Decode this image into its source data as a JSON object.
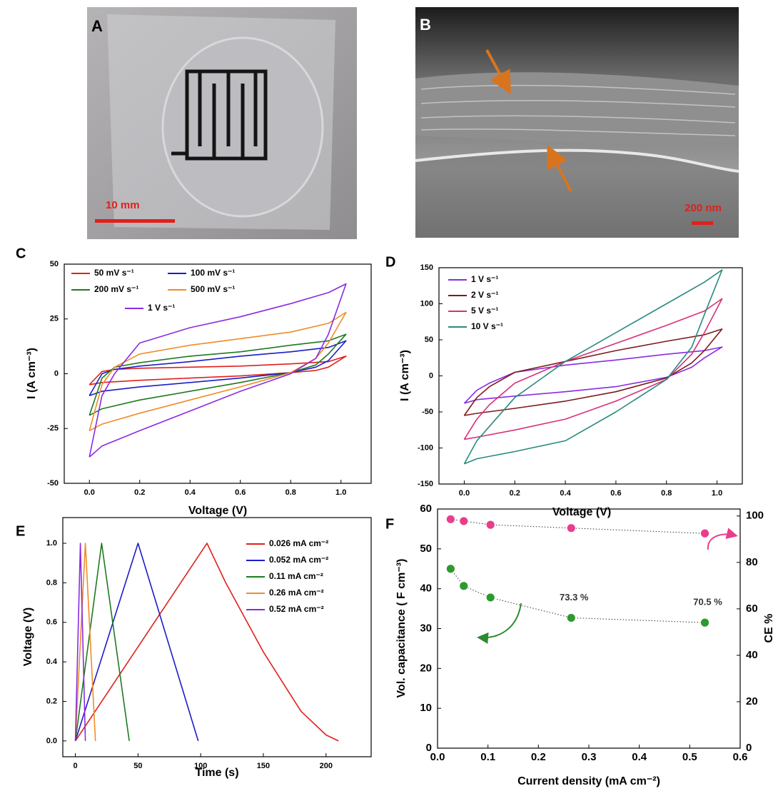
{
  "photos": [
    {
      "label": "A",
      "scale_bar": "10 mm"
    },
    {
      "label": "B",
      "scale_bar": "200 nm"
    }
  ],
  "chart_data": [
    {
      "type": "line",
      "label": "C",
      "x_label": "Voltage (V)",
      "y_label": "I (A cm⁻³)",
      "x": [
        0,
        0.05,
        0.1,
        0.2,
        0.4,
        0.6,
        0.8,
        0.95,
        1.02,
        0.95,
        0.9,
        0.8,
        0.6,
        0.4,
        0.2,
        0.05,
        0
      ],
      "xlim": [
        -0.1,
        1.12
      ],
      "xticks": [
        {
          "value": 0,
          "label": "0.0"
        },
        0.2,
        0.4,
        0.6,
        0.8,
        {
          "value": 1,
          "label": "1.0"
        }
      ],
      "ylim": [
        -50,
        50
      ],
      "yticks": [
        -50,
        -25,
        0,
        25,
        50
      ],
      "series": [
        {
          "name": "50 mV s⁻¹",
          "color": "#e0201c",
          "values": [
            -5,
            1,
            2,
            2.5,
            3,
            3.5,
            4.5,
            5.5,
            8,
            3,
            1.5,
            0.5,
            -1,
            -2,
            -3,
            -4,
            -5
          ]
        },
        {
          "name": "100 mV s⁻¹",
          "color": "#1c1cc8",
          "values": [
            -10,
            0,
            2,
            3.5,
            5.5,
            8,
            10,
            12,
            15,
            6,
            3,
            0.5,
            -2,
            -4,
            -6,
            -8,
            -10
          ]
        },
        {
          "name": "200 mV s⁻¹",
          "color": "#1f7a1f",
          "values": [
            -19,
            -2,
            3,
            5,
            8,
            10,
            13,
            15,
            18,
            9,
            4,
            0.5,
            -4,
            -8,
            -12,
            -16,
            -19
          ]
        },
        {
          "name": "500 mV s⁻¹",
          "color": "#f08c28",
          "values": [
            -26,
            -5,
            3,
            9,
            13,
            16,
            19,
            23,
            28,
            14,
            7,
            0.5,
            -6,
            -12,
            -18,
            -23,
            -26
          ]
        },
        {
          "name": "1 V s⁻¹",
          "color": "#8a2be2",
          "values": [
            -38,
            -10,
            0,
            14,
            21,
            26,
            32,
            37,
            41,
            18,
            7,
            0,
            -8,
            -17,
            -26,
            -33,
            -38
          ]
        }
      ]
    },
    {
      "type": "line",
      "label": "D",
      "x_label": "Voltage (V)",
      "y_label": "I (A cm⁻³)",
      "x": [
        0,
        0.05,
        0.1,
        0.2,
        0.4,
        0.6,
        0.8,
        0.95,
        1.02,
        0.95,
        0.9,
        0.8,
        0.6,
        0.4,
        0.2,
        0.05,
        0
      ],
      "xlim": [
        -0.1,
        1.1
      ],
      "xticks": [
        {
          "value": 0,
          "label": "0.0"
        },
        0.2,
        0.4,
        0.6,
        0.8,
        {
          "value": 1,
          "label": "1.0"
        }
      ],
      "ylim": [
        -150,
        150
      ],
      "yticks": [
        -150,
        -100,
        -50,
        0,
        50,
        100,
        150
      ],
      "series": [
        {
          "name": "1 V s⁻¹",
          "color": "#8a2be2",
          "values": [
            -38,
            -20,
            -10,
            5,
            15,
            22,
            30,
            35,
            40,
            25,
            12,
            -2,
            -15,
            -22,
            -28,
            -33,
            -38
          ]
        },
        {
          "name": "2 V s⁻¹",
          "color": "#7b1c1c",
          "values": [
            -55,
            -30,
            -15,
            5,
            20,
            35,
            48,
            57,
            65,
            35,
            18,
            -3,
            -22,
            -35,
            -45,
            -52,
            -55
          ]
        },
        {
          "name": "5 V s⁻¹",
          "color": "#d6307a",
          "values": [
            -88,
            -60,
            -40,
            -10,
            20,
            45,
            70,
            90,
            107,
            60,
            30,
            -5,
            -35,
            -60,
            -75,
            -85,
            -88
          ]
        },
        {
          "name": "10 V s⁻¹",
          "color": "#2a8a80",
          "values": [
            -122,
            -90,
            -70,
            -30,
            20,
            60,
            100,
            130,
            147,
            85,
            40,
            -5,
            -50,
            -90,
            -105,
            -115,
            -122
          ]
        }
      ]
    },
    {
      "type": "line",
      "label": "E",
      "x_label": "Time (s)",
      "y_label": "Voltage (V)",
      "xlim": [
        -10,
        236
      ],
      "xticks": [
        0,
        50,
        100,
        150,
        200
      ],
      "ylim": [
        -0.08,
        1.13
      ],
      "yticks": [
        {
          "value": 0,
          "label": "0.0"
        },
        0.2,
        0.4,
        0.6,
        0.8,
        {
          "value": 1,
          "label": "1.0"
        }
      ],
      "series": [
        {
          "name": "0.026 mA cm⁻²",
          "color": "#e0201c",
          "x": [
            0,
            105,
            120,
            150,
            180,
            200,
            210
          ],
          "values": [
            0,
            1,
            0.8,
            0.45,
            0.15,
            0.03,
            0
          ]
        },
        {
          "name": "0.052  mA cm⁻²",
          "color": "#1c1cc8",
          "x": [
            0,
            50,
            98
          ],
          "values": [
            0,
            1,
            0
          ]
        },
        {
          "name": "0.11 mA cm⁻²",
          "color": "#1f7a1f",
          "x": [
            0,
            21,
            43
          ],
          "values": [
            0,
            1,
            0
          ]
        },
        {
          "name": "0.26  mA cm⁻²",
          "color": "#f08c28",
          "x": [
            0,
            8,
            16
          ],
          "values": [
            0,
            1,
            0
          ]
        },
        {
          "name": "0.52  mA cm⁻²",
          "color": "#8a2be2",
          "x": [
            0,
            4,
            8
          ],
          "values": [
            0,
            1,
            0
          ]
        }
      ]
    },
    {
      "type": "scatter",
      "label": "F",
      "x_label": "Current density (mA cm⁻²)",
      "y_label": "Vol. capacitance ( F cm⁻³)",
      "y2_label": "CE %",
      "x": [
        0.026,
        0.052,
        0.105,
        0.265,
        0.53
      ],
      "xlim": [
        0,
        0.6
      ],
      "xticks": [
        {
          "value": 0,
          "label": "0.0"
        },
        0.1,
        0.2,
        0.3,
        0.4,
        0.5,
        0.6
      ],
      "ylim": [
        0,
        60
      ],
      "yticks": [
        0,
        10,
        20,
        30,
        40,
        50,
        60
      ],
      "y2lim": [
        0,
        103
      ],
      "y2ticks": [
        0,
        20,
        40,
        60,
        80,
        100
      ],
      "annotations": [
        "73.3 %",
        "70.5 %"
      ],
      "series": [
        {
          "color": "#2e9a2e",
          "values": [
            45,
            40.7,
            37.8,
            32.7,
            31.5
          ]
        },
        {
          "color": "#e83e8c",
          "axis": "y2",
          "values": [
            98.6,
            97.8,
            96.2,
            94.8,
            92.5
          ]
        }
      ]
    }
  ]
}
